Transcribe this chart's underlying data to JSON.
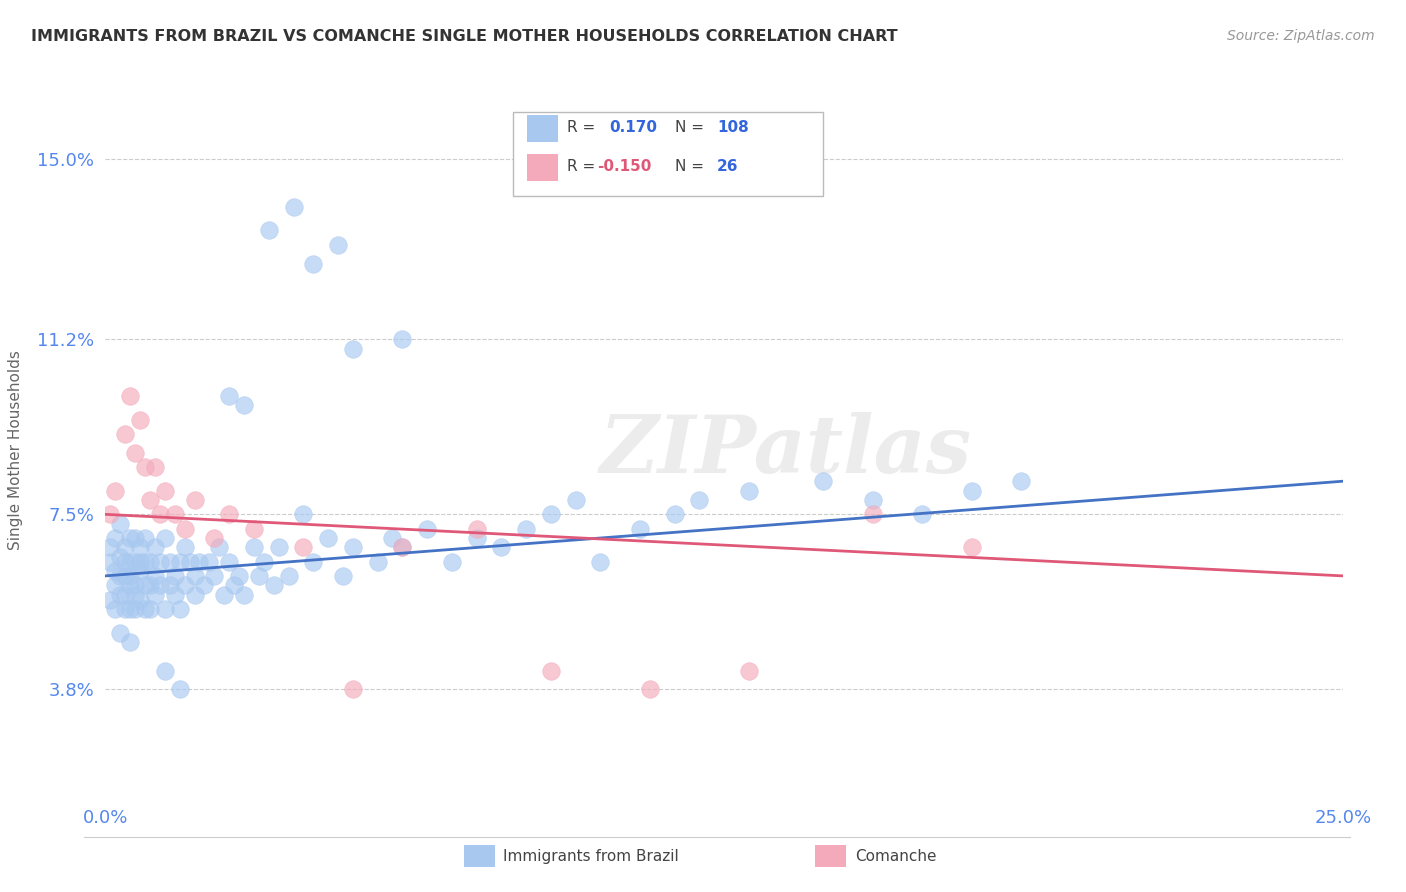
{
  "title": "IMMIGRANTS FROM BRAZIL VS COMANCHE SINGLE MOTHER HOUSEHOLDS CORRELATION CHART",
  "source": "Source: ZipAtlas.com",
  "ylabel_label": "Single Mother Households",
  "xlim": [
    0.0,
    0.25
  ],
  "ylim": [
    0.015,
    0.162
  ],
  "ytick_vals": [
    0.038,
    0.075,
    0.112,
    0.15
  ],
  "ytick_labels": [
    "3.8%",
    "7.5%",
    "11.2%",
    "15.0%"
  ],
  "xtick_vals": [
    0.0,
    0.25
  ],
  "xtick_labels": [
    "0.0%",
    "25.0%"
  ],
  "blue_color": "#A8C8F0",
  "pink_color": "#F4AABB",
  "line_blue": "#4472C4",
  "line_pink": "#E05878",
  "watermark": "ZIPatlas",
  "blue_line_x": [
    0.0,
    0.25
  ],
  "blue_line_y": [
    0.062,
    0.082
  ],
  "pink_line_x": [
    0.0,
    0.25
  ],
  "pink_line_y": [
    0.075,
    0.062
  ],
  "brazil_x": [
    0.001,
    0.001,
    0.001,
    0.002,
    0.002,
    0.002,
    0.002,
    0.003,
    0.003,
    0.003,
    0.003,
    0.003,
    0.004,
    0.004,
    0.004,
    0.004,
    0.004,
    0.005,
    0.005,
    0.005,
    0.005,
    0.005,
    0.005,
    0.006,
    0.006,
    0.006,
    0.006,
    0.006,
    0.007,
    0.007,
    0.007,
    0.007,
    0.008,
    0.008,
    0.008,
    0.008,
    0.009,
    0.009,
    0.009,
    0.01,
    0.01,
    0.01,
    0.011,
    0.011,
    0.012,
    0.012,
    0.013,
    0.013,
    0.014,
    0.014,
    0.015,
    0.015,
    0.016,
    0.016,
    0.017,
    0.018,
    0.018,
    0.019,
    0.02,
    0.021,
    0.022,
    0.023,
    0.024,
    0.025,
    0.026,
    0.027,
    0.028,
    0.03,
    0.031,
    0.032,
    0.034,
    0.035,
    0.037,
    0.04,
    0.042,
    0.045,
    0.048,
    0.05,
    0.055,
    0.058,
    0.06,
    0.065,
    0.07,
    0.075,
    0.08,
    0.085,
    0.09,
    0.095,
    0.1,
    0.108,
    0.115,
    0.12,
    0.13,
    0.145,
    0.155,
    0.165,
    0.175,
    0.185,
    0.05,
    0.06,
    0.025,
    0.028,
    0.033,
    0.038,
    0.042,
    0.047,
    0.012,
    0.015
  ],
  "brazil_y": [
    0.065,
    0.068,
    0.057,
    0.063,
    0.06,
    0.055,
    0.07,
    0.062,
    0.058,
    0.066,
    0.073,
    0.05,
    0.065,
    0.058,
    0.062,
    0.055,
    0.068,
    0.06,
    0.065,
    0.07,
    0.055,
    0.062,
    0.048,
    0.065,
    0.06,
    0.07,
    0.055,
    0.058,
    0.065,
    0.063,
    0.068,
    0.057,
    0.06,
    0.065,
    0.055,
    0.07,
    0.065,
    0.06,
    0.055,
    0.068,
    0.062,
    0.058,
    0.065,
    0.06,
    0.07,
    0.055,
    0.065,
    0.06,
    0.062,
    0.058,
    0.065,
    0.055,
    0.068,
    0.06,
    0.065,
    0.062,
    0.058,
    0.065,
    0.06,
    0.065,
    0.062,
    0.068,
    0.058,
    0.065,
    0.06,
    0.062,
    0.058,
    0.068,
    0.062,
    0.065,
    0.06,
    0.068,
    0.062,
    0.075,
    0.065,
    0.07,
    0.062,
    0.068,
    0.065,
    0.07,
    0.068,
    0.072,
    0.065,
    0.07,
    0.068,
    0.072,
    0.075,
    0.078,
    0.065,
    0.072,
    0.075,
    0.078,
    0.08,
    0.082,
    0.078,
    0.075,
    0.08,
    0.082,
    0.11,
    0.112,
    0.1,
    0.098,
    0.135,
    0.14,
    0.128,
    0.132,
    0.042,
    0.038
  ],
  "comanche_x": [
    0.001,
    0.002,
    0.004,
    0.005,
    0.006,
    0.007,
    0.008,
    0.009,
    0.01,
    0.011,
    0.012,
    0.014,
    0.016,
    0.018,
    0.022,
    0.025,
    0.03,
    0.04,
    0.05,
    0.06,
    0.075,
    0.09,
    0.11,
    0.13,
    0.155,
    0.175
  ],
  "comanche_y": [
    0.075,
    0.08,
    0.092,
    0.1,
    0.088,
    0.095,
    0.085,
    0.078,
    0.085,
    0.075,
    0.08,
    0.075,
    0.072,
    0.078,
    0.07,
    0.075,
    0.072,
    0.068,
    0.038,
    0.068,
    0.072,
    0.042,
    0.038,
    0.042,
    0.075,
    0.068
  ]
}
